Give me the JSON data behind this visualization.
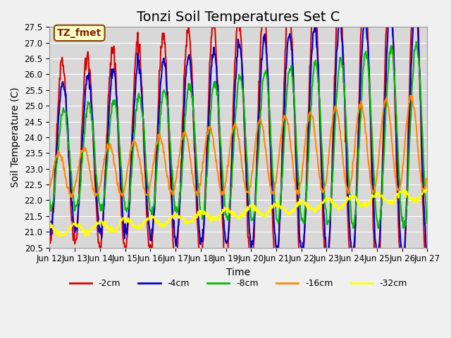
{
  "title": "Tonzi Soil Temperatures Set C",
  "xlabel": "Time",
  "ylabel": "Soil Temperature (C)",
  "ylim": [
    20.5,
    27.5
  ],
  "xlim_days": [
    0,
    15
  ],
  "x_tick_labels": [
    "Jun 12",
    "Jun 13",
    "Jun 14",
    "Jun 15",
    "Jun 16",
    "Jun 17",
    "Jun 18",
    "Jun 19",
    "Jun 20",
    "Jun 21",
    "Jun 22",
    "Jun 23",
    "Jun 24",
    "Jun 25",
    "Jun 26",
    "Jun 27"
  ],
  "lines": {
    "-2cm": {
      "color": "#dd0000",
      "lw": 1.5
    },
    "-4cm": {
      "color": "#0000cc",
      "lw": 1.5
    },
    "-8cm": {
      "color": "#00bb00",
      "lw": 1.5
    },
    "-16cm": {
      "color": "#ff8800",
      "lw": 1.5
    },
    "-32cm": {
      "color": "#ffff00",
      "lw": 1.5
    }
  },
  "annotation": "TZ_fmet",
  "annotation_bg": "#ffffcc",
  "annotation_border": "#884400",
  "bg_color": "#e8e8e8",
  "plot_bg": "#d8d8d8",
  "title_fontsize": 14,
  "axis_fontsize": 10,
  "tick_fontsize": 8.5,
  "legend_fontsize": 9
}
